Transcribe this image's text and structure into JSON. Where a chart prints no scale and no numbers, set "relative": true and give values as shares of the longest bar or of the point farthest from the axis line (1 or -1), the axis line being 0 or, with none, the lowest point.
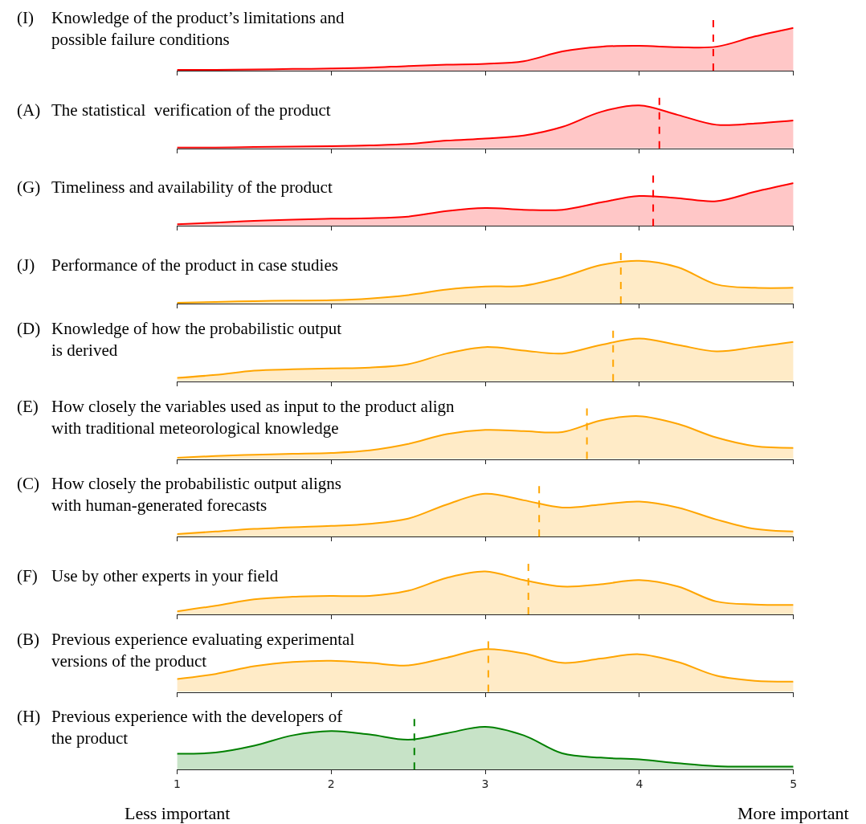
{
  "chart_data": [
    {
      "type": "area",
      "title": "(I) Knowledge of the product’s limitations and\npossible failure conditions",
      "relative": true,
      "x": [
        1,
        1.25,
        1.5,
        1.75,
        2,
        2.25,
        2.5,
        2.75,
        3,
        3.25,
        3.5,
        3.75,
        4,
        4.25,
        4.5,
        4.75,
        5
      ],
      "xlim": [
        1,
        5
      ],
      "xticks": [
        1,
        2,
        3,
        4,
        5
      ],
      "tick_labels": false,
      "series": [
        {
          "color": "#ff0000",
          "values": [
            0.02,
            0.02,
            0.03,
            0.04,
            0.05,
            0.07,
            0.11,
            0.14,
            0.16,
            0.22,
            0.45,
            0.56,
            0.58,
            0.55,
            0.56,
            0.8,
            1.0
          ]
        }
      ],
      "ref_lines": [
        {
          "axis": "x",
          "value": 4.48,
          "color": "#ff0000",
          "line_style": "dashed"
        }
      ]
    },
    {
      "type": "area",
      "title": "(A) The statistical  verification of the product",
      "relative": true,
      "x": [
        1,
        1.25,
        1.5,
        1.75,
        2,
        2.25,
        2.5,
        2.75,
        3,
        3.25,
        3.5,
        3.75,
        4,
        4.25,
        4.5,
        4.75,
        5
      ],
      "xlim": [
        1,
        5
      ],
      "xticks": [
        1,
        2,
        3,
        4,
        5
      ],
      "tick_labels": false,
      "series": [
        {
          "color": "#ff0000",
          "values": [
            0.02,
            0.02,
            0.03,
            0.04,
            0.05,
            0.07,
            0.1,
            0.18,
            0.23,
            0.3,
            0.5,
            0.85,
            1.0,
            0.78,
            0.55,
            0.58,
            0.65
          ]
        }
      ],
      "ref_lines": [
        {
          "axis": "x",
          "value": 4.13,
          "color": "#ff0000",
          "line_style": "dashed"
        }
      ]
    },
    {
      "type": "area",
      "title": "(G) Timeliness and availability of the product",
      "relative": true,
      "x": [
        1,
        1.25,
        1.5,
        1.75,
        2,
        2.25,
        2.5,
        2.75,
        3,
        3.25,
        3.5,
        3.75,
        4,
        4.25,
        4.5,
        4.75,
        5
      ],
      "xlim": [
        1,
        5
      ],
      "xticks": [
        1,
        2,
        3,
        4,
        5
      ],
      "tick_labels": false,
      "series": [
        {
          "color": "#ff0000",
          "values": [
            0.04,
            0.08,
            0.12,
            0.15,
            0.17,
            0.18,
            0.22,
            0.35,
            0.42,
            0.38,
            0.38,
            0.55,
            0.7,
            0.65,
            0.58,
            0.8,
            1.0
          ]
        }
      ],
      "ref_lines": [
        {
          "axis": "x",
          "value": 4.09,
          "color": "#ff0000",
          "line_style": "dashed"
        }
      ]
    },
    {
      "type": "area",
      "title": "(J) Performance of the product in case studies",
      "relative": true,
      "x": [
        1,
        1.25,
        1.5,
        1.75,
        2,
        2.25,
        2.5,
        2.75,
        3,
        3.25,
        3.5,
        3.75,
        4,
        4.25,
        4.5,
        4.75,
        5
      ],
      "xlim": [
        1,
        5
      ],
      "xticks": [
        1,
        2,
        3,
        4,
        5
      ],
      "tick_labels": false,
      "series": [
        {
          "color": "#ffa500",
          "values": [
            0.02,
            0.04,
            0.06,
            0.07,
            0.08,
            0.12,
            0.2,
            0.33,
            0.4,
            0.42,
            0.62,
            0.9,
            1.0,
            0.85,
            0.45,
            0.37,
            0.37
          ]
        }
      ],
      "ref_lines": [
        {
          "axis": "x",
          "value": 3.88,
          "color": "#ffa500",
          "line_style": "dashed"
        }
      ]
    },
    {
      "type": "area",
      "title": "(D) Knowledge of how the probabilistic output\nis derived",
      "relative": true,
      "x": [
        1,
        1.25,
        1.5,
        1.75,
        2,
        2.25,
        2.5,
        2.75,
        3,
        3.25,
        3.5,
        3.75,
        4,
        4.25,
        4.5,
        4.75,
        5
      ],
      "xlim": [
        1,
        5
      ],
      "xticks": [
        1,
        2,
        3,
        4,
        5
      ],
      "tick_labels": false,
      "series": [
        {
          "color": "#ffa500",
          "values": [
            0.08,
            0.15,
            0.25,
            0.28,
            0.3,
            0.32,
            0.4,
            0.65,
            0.8,
            0.72,
            0.65,
            0.85,
            1.0,
            0.85,
            0.7,
            0.8,
            0.92
          ]
        }
      ],
      "ref_lines": [
        {
          "axis": "x",
          "value": 3.83,
          "color": "#ffa500",
          "line_style": "dashed"
        }
      ]
    },
    {
      "type": "area",
      "title": "(E) How closely the variables used as input to the product align\nwith traditional meteorological knowledge",
      "relative": true,
      "x": [
        1,
        1.25,
        1.5,
        1.75,
        2,
        2.25,
        2.5,
        2.75,
        3,
        3.25,
        3.5,
        3.75,
        4,
        4.25,
        4.5,
        4.75,
        5
      ],
      "xlim": [
        1,
        5
      ],
      "xticks": [
        1,
        2,
        3,
        4,
        5
      ],
      "tick_labels": false,
      "series": [
        {
          "color": "#ffa500",
          "values": [
            0.03,
            0.07,
            0.1,
            0.12,
            0.14,
            0.2,
            0.35,
            0.58,
            0.68,
            0.65,
            0.63,
            0.9,
            1.0,
            0.82,
            0.5,
            0.3,
            0.26
          ]
        }
      ],
      "ref_lines": [
        {
          "axis": "x",
          "value": 3.66,
          "color": "#ffa500",
          "line_style": "dashed"
        }
      ]
    },
    {
      "type": "area",
      "title": "(C) How closely the probabilistic output aligns\nwith human-generated forecasts",
      "relative": true,
      "x": [
        1,
        1.25,
        1.5,
        1.75,
        2,
        2.25,
        2.5,
        2.75,
        3,
        3.25,
        3.5,
        3.75,
        4,
        4.25,
        4.5,
        4.75,
        5
      ],
      "xlim": [
        1,
        5
      ],
      "xticks": [
        1,
        2,
        3,
        4,
        5
      ],
      "tick_labels": false,
      "series": [
        {
          "color": "#ffa500",
          "values": [
            0.06,
            0.12,
            0.18,
            0.22,
            0.25,
            0.3,
            0.42,
            0.75,
            1.0,
            0.85,
            0.68,
            0.75,
            0.82,
            0.68,
            0.4,
            0.18,
            0.12
          ]
        }
      ],
      "ref_lines": [
        {
          "axis": "x",
          "value": 3.35,
          "color": "#ffa500",
          "line_style": "dashed"
        }
      ]
    },
    {
      "type": "area",
      "title": "(F) Use by other experts in your field",
      "relative": true,
      "x": [
        1,
        1.25,
        1.5,
        1.75,
        2,
        2.25,
        2.5,
        2.75,
        3,
        3.25,
        3.5,
        3.75,
        4,
        4.25,
        4.5,
        4.75,
        5
      ],
      "xlim": [
        1,
        5
      ],
      "xticks": [
        1,
        2,
        3,
        4,
        5
      ],
      "tick_labels": false,
      "series": [
        {
          "color": "#ffa500",
          "values": [
            0.07,
            0.2,
            0.35,
            0.41,
            0.43,
            0.43,
            0.55,
            0.85,
            1.0,
            0.8,
            0.65,
            0.7,
            0.8,
            0.65,
            0.3,
            0.23,
            0.22
          ]
        }
      ],
      "ref_lines": [
        {
          "axis": "x",
          "value": 3.28,
          "color": "#ffa500",
          "line_style": "dashed"
        }
      ]
    },
    {
      "type": "area",
      "title": "(B) Previous experience evaluating experimental\nversions of the product",
      "relative": true,
      "x": [
        1,
        1.25,
        1.5,
        1.75,
        2,
        2.25,
        2.5,
        2.75,
        3,
        3.25,
        3.5,
        3.75,
        4,
        4.25,
        4.5,
        4.75,
        5
      ],
      "xlim": [
        1,
        5
      ],
      "xticks": [
        1,
        2,
        3,
        4,
        5
      ],
      "tick_labels": false,
      "series": [
        {
          "color": "#ffa500",
          "values": [
            0.3,
            0.42,
            0.6,
            0.7,
            0.73,
            0.68,
            0.62,
            0.8,
            1.0,
            0.9,
            0.68,
            0.78,
            0.88,
            0.7,
            0.38,
            0.26,
            0.24
          ]
        }
      ],
      "ref_lines": [
        {
          "axis": "x",
          "value": 3.02,
          "color": "#ffa500",
          "line_style": "dashed"
        }
      ]
    },
    {
      "type": "area",
      "title": "(H) Previous experience with the developers of\nthe product",
      "relative": true,
      "x": [
        1,
        1.25,
        1.5,
        1.75,
        2,
        2.25,
        2.5,
        2.75,
        3,
        3.25,
        3.5,
        3.75,
        4,
        4.25,
        4.5,
        4.75,
        5
      ],
      "xlim": [
        1,
        5
      ],
      "xticks": [
        1,
        2,
        3,
        4,
        5
      ],
      "tick_labels": "x",
      "series": [
        {
          "color": "#008000",
          "values": [
            0.37,
            0.4,
            0.56,
            0.8,
            0.9,
            0.82,
            0.7,
            0.85,
            1.0,
            0.8,
            0.38,
            0.28,
            0.24,
            0.15,
            0.08,
            0.07,
            0.07
          ]
        }
      ],
      "ref_lines": [
        {
          "axis": "x",
          "value": 2.54,
          "color": "#008000",
          "line_style": "dashed"
        }
      ],
      "annotations": [
        "Less important",
        "More important"
      ]
    }
  ]
}
